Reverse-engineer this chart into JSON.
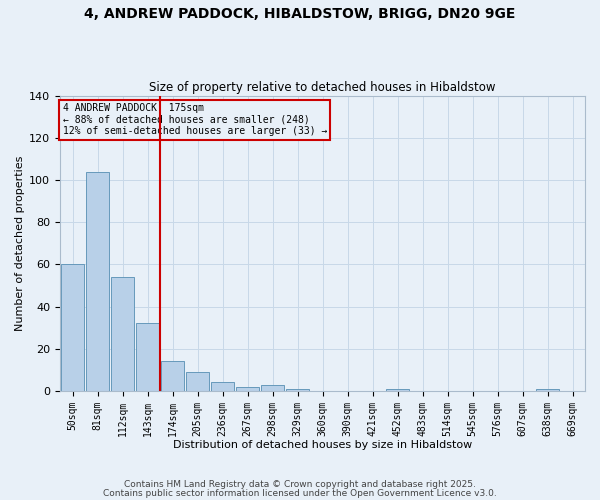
{
  "title": "4, ANDREW PADDOCK, HIBALDSTOW, BRIGG, DN20 9GE",
  "subtitle": "Size of property relative to detached houses in Hibaldstow",
  "xlabel": "Distribution of detached houses by size in Hibaldstow",
  "ylabel": "Number of detached properties",
  "bar_labels": [
    "50sqm",
    "81sqm",
    "112sqm",
    "143sqm",
    "174sqm",
    "205sqm",
    "236sqm",
    "267sqm",
    "298sqm",
    "329sqm",
    "360sqm",
    "390sqm",
    "421sqm",
    "452sqm",
    "483sqm",
    "514sqm",
    "545sqm",
    "576sqm",
    "607sqm",
    "638sqm",
    "669sqm"
  ],
  "bar_values": [
    60,
    104,
    54,
    32,
    14,
    9,
    4,
    2,
    3,
    1,
    0,
    0,
    0,
    1,
    0,
    0,
    0,
    0,
    0,
    1,
    0
  ],
  "bar_color": "#b8d0e8",
  "bar_edge_color": "#6699bb",
  "vline_index": 4,
  "vline_color": "#cc0000",
  "annotation_line1": "4 ANDREW PADDOCK: 175sqm",
  "annotation_line2": "← 88% of detached houses are smaller (248)",
  "annotation_line3": "12% of semi-detached houses are larger (33) →",
  "annotation_box_color": "#cc0000",
  "ylim": [
    0,
    140
  ],
  "yticks": [
    0,
    20,
    40,
    60,
    80,
    100,
    120,
    140
  ],
  "grid_color": "#c8d8e8",
  "bg_color": "#e8f0f8",
  "footer1": "Contains HM Land Registry data © Crown copyright and database right 2025.",
  "footer2": "Contains public sector information licensed under the Open Government Licence v3.0."
}
